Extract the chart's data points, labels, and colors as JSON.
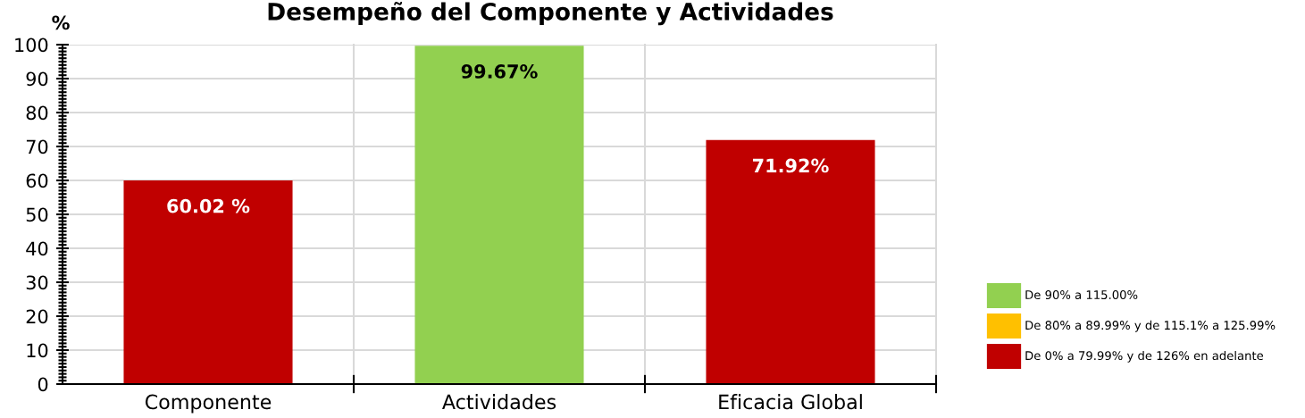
{
  "chart_data": {
    "type": "bar",
    "title": "Desempeño del Componente y Actividades",
    "ylabel": "%",
    "categories": [
      "Componente",
      "Actividades",
      "Eficacia Global"
    ],
    "stacked": true,
    "series": [
      {
        "name": "De 90% a 115.00%",
        "color": "#92d050",
        "values": [
          null,
          99.67,
          null
        ],
        "value_labels": [
          null,
          "99.67%",
          null
        ]
      },
      {
        "name": "De 80% a 89.99% y de 115.1% a 125.99%",
        "color": "#ffc000",
        "values": [
          null,
          null,
          null
        ]
      },
      {
        "name": "De 0% a 79.99% y de 126% en adelante",
        "color": "#c00000",
        "values": [
          60.02,
          null,
          71.92
        ],
        "value_labels": [
          "60.02 %",
          null,
          "71.92%"
        ]
      }
    ],
    "ylim": [
      0,
      100
    ],
    "yticks": [
      0,
      {
        "value": 1,
        "label": null
      },
      {
        "value": 2,
        "label": null
      },
      {
        "value": 3,
        "label": null
      },
      {
        "value": 4,
        "label": null
      },
      {
        "value": 5,
        "label": null
      },
      {
        "value": 6,
        "label": null
      },
      {
        "value": 7,
        "label": null
      },
      {
        "value": 8,
        "label": null
      },
      {
        "value": 9,
        "label": null
      },
      10,
      {
        "value": 11,
        "label": null
      },
      {
        "value": 12,
        "label": null
      },
      {
        "value": 13,
        "label": null
      },
      {
        "value": 14,
        "label": null
      },
      {
        "value": 15,
        "label": null
      },
      {
        "value": 16,
        "label": null
      },
      {
        "value": 17,
        "label": null
      },
      {
        "value": 18,
        "label": null
      },
      {
        "value": 19,
        "label": null
      },
      20,
      {
        "value": 21,
        "label": null
      },
      {
        "value": 22,
        "label": null
      },
      {
        "value": 23,
        "label": null
      },
      {
        "value": 24,
        "label": null
      },
      {
        "value": 25,
        "label": null
      },
      {
        "value": 26,
        "label": null
      },
      {
        "value": 27,
        "label": null
      },
      {
        "value": 28,
        "label": null
      },
      {
        "value": 29,
        "label": null
      },
      30,
      {
        "value": 31,
        "label": null
      },
      {
        "value": 32,
        "label": null
      },
      {
        "value": 33,
        "label": null
      },
      {
        "value": 34,
        "label": null
      },
      {
        "value": 35,
        "label": null
      },
      {
        "value": 36,
        "label": null
      },
      {
        "value": 37,
        "label": null
      },
      {
        "value": 38,
        "label": null
      },
      {
        "value": 39,
        "label": null
      },
      40,
      {
        "value": 41,
        "label": null
      },
      {
        "value": 42,
        "label": null
      },
      {
        "value": 43,
        "label": null
      },
      {
        "value": 44,
        "label": null
      },
      {
        "value": 45,
        "label": null
      },
      {
        "value": 46,
        "label": null
      },
      {
        "value": 47,
        "label": null
      },
      {
        "value": 48,
        "label": null
      },
      {
        "value": 49,
        "label": null
      },
      50,
      {
        "value": 51,
        "label": null
      },
      {
        "value": 52,
        "label": null
      },
      {
        "value": 53,
        "label": null
      },
      {
        "value": 54,
        "label": null
      },
      {
        "value": 55,
        "label": null
      },
      {
        "value": 56,
        "label": null
      },
      {
        "value": 57,
        "label": null
      },
      {
        "value": 58,
        "label": null
      },
      {
        "value": 59,
        "label": null
      },
      60,
      {
        "value": 61,
        "label": null
      },
      {
        "value": 62,
        "label": null
      },
      {
        "value": 63,
        "label": null
      },
      {
        "value": 64,
        "label": null
      },
      {
        "value": 65,
        "label": null
      },
      {
        "value": 66,
        "label": null
      },
      {
        "value": 67,
        "label": null
      },
      {
        "value": 68,
        "label": null
      },
      {
        "value": 69,
        "label": null
      },
      70,
      {
        "value": 71,
        "label": null
      },
      {
        "value": 72,
        "label": null
      },
      {
        "value": 73,
        "label": null
      },
      {
        "value": 74,
        "label": null
      },
      {
        "value": 75,
        "label": null
      },
      {
        "value": 76,
        "label": null
      },
      {
        "value": 77,
        "label": null
      },
      {
        "value": 78,
        "label": null
      },
      {
        "value": 79,
        "label": null
      },
      80,
      {
        "value": 81,
        "label": null
      },
      {
        "value": 82,
        "label": null
      },
      {
        "value": 83,
        "label": null
      },
      {
        "value": 84,
        "label": null
      },
      {
        "value": 85,
        "label": null
      },
      {
        "value": 86,
        "label": null
      },
      {
        "value": 87,
        "label": null
      },
      {
        "value": 88,
        "label": null
      },
      {
        "value": 89,
        "label": null
      },
      90,
      {
        "value": 91,
        "label": null
      },
      {
        "value": 92,
        "label": null
      },
      {
        "value": 93,
        "label": null
      },
      {
        "value": 94,
        "label": null
      },
      {
        "value": 95,
        "label": null
      },
      {
        "value": 96,
        "label": null
      },
      {
        "value": 97,
        "label": null
      },
      {
        "value": 98,
        "label": null
      },
      {
        "value": 99,
        "label": null
      },
      100
    ],
    "grid": true,
    "legend": "right"
  }
}
